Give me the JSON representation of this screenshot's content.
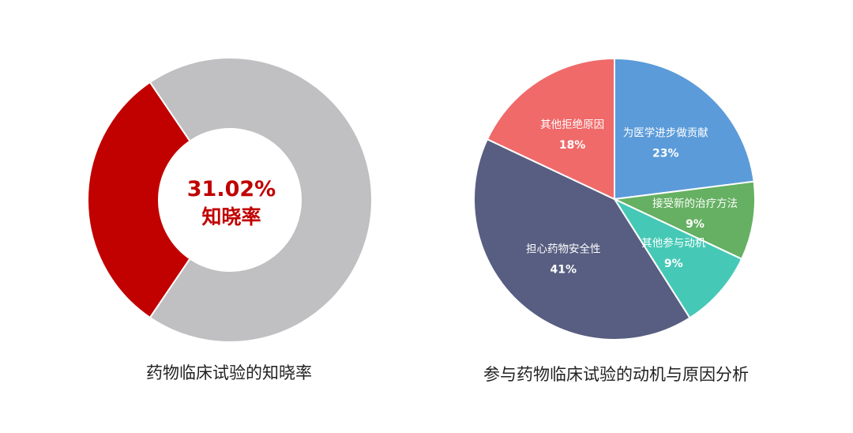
{
  "chart_data": [
    {
      "type": "pie",
      "variant": "donut",
      "title": "药物临床试验的知晓率",
      "center_value": "31.02%",
      "center_label": "知晓率",
      "slices": [
        {
          "label": "知晓率",
          "value": 31.02,
          "color": "#c10000"
        },
        {
          "label": "",
          "value": 68.98,
          "color": "#c0bfc1"
        }
      ]
    },
    {
      "type": "pie",
      "title": "参与药物临床试验的动机与原因分析",
      "slices": [
        {
          "label": "为医学进步做贡献",
          "value": 23,
          "display": "23%",
          "color": "#5b9bd9"
        },
        {
          "label": "接受新的治疗方法",
          "value": 9,
          "display": "9%",
          "color": "#65b062"
        },
        {
          "label": "其他参与动机",
          "value": 9,
          "display": "9%",
          "color": "#45c9b6"
        },
        {
          "label": "担心药物安全性",
          "value": 41,
          "display": "41%",
          "color": "#585e81"
        },
        {
          "label": "其他拒绝原因",
          "value": 18,
          "display": "18%",
          "color": "#f06a6a"
        }
      ]
    }
  ]
}
